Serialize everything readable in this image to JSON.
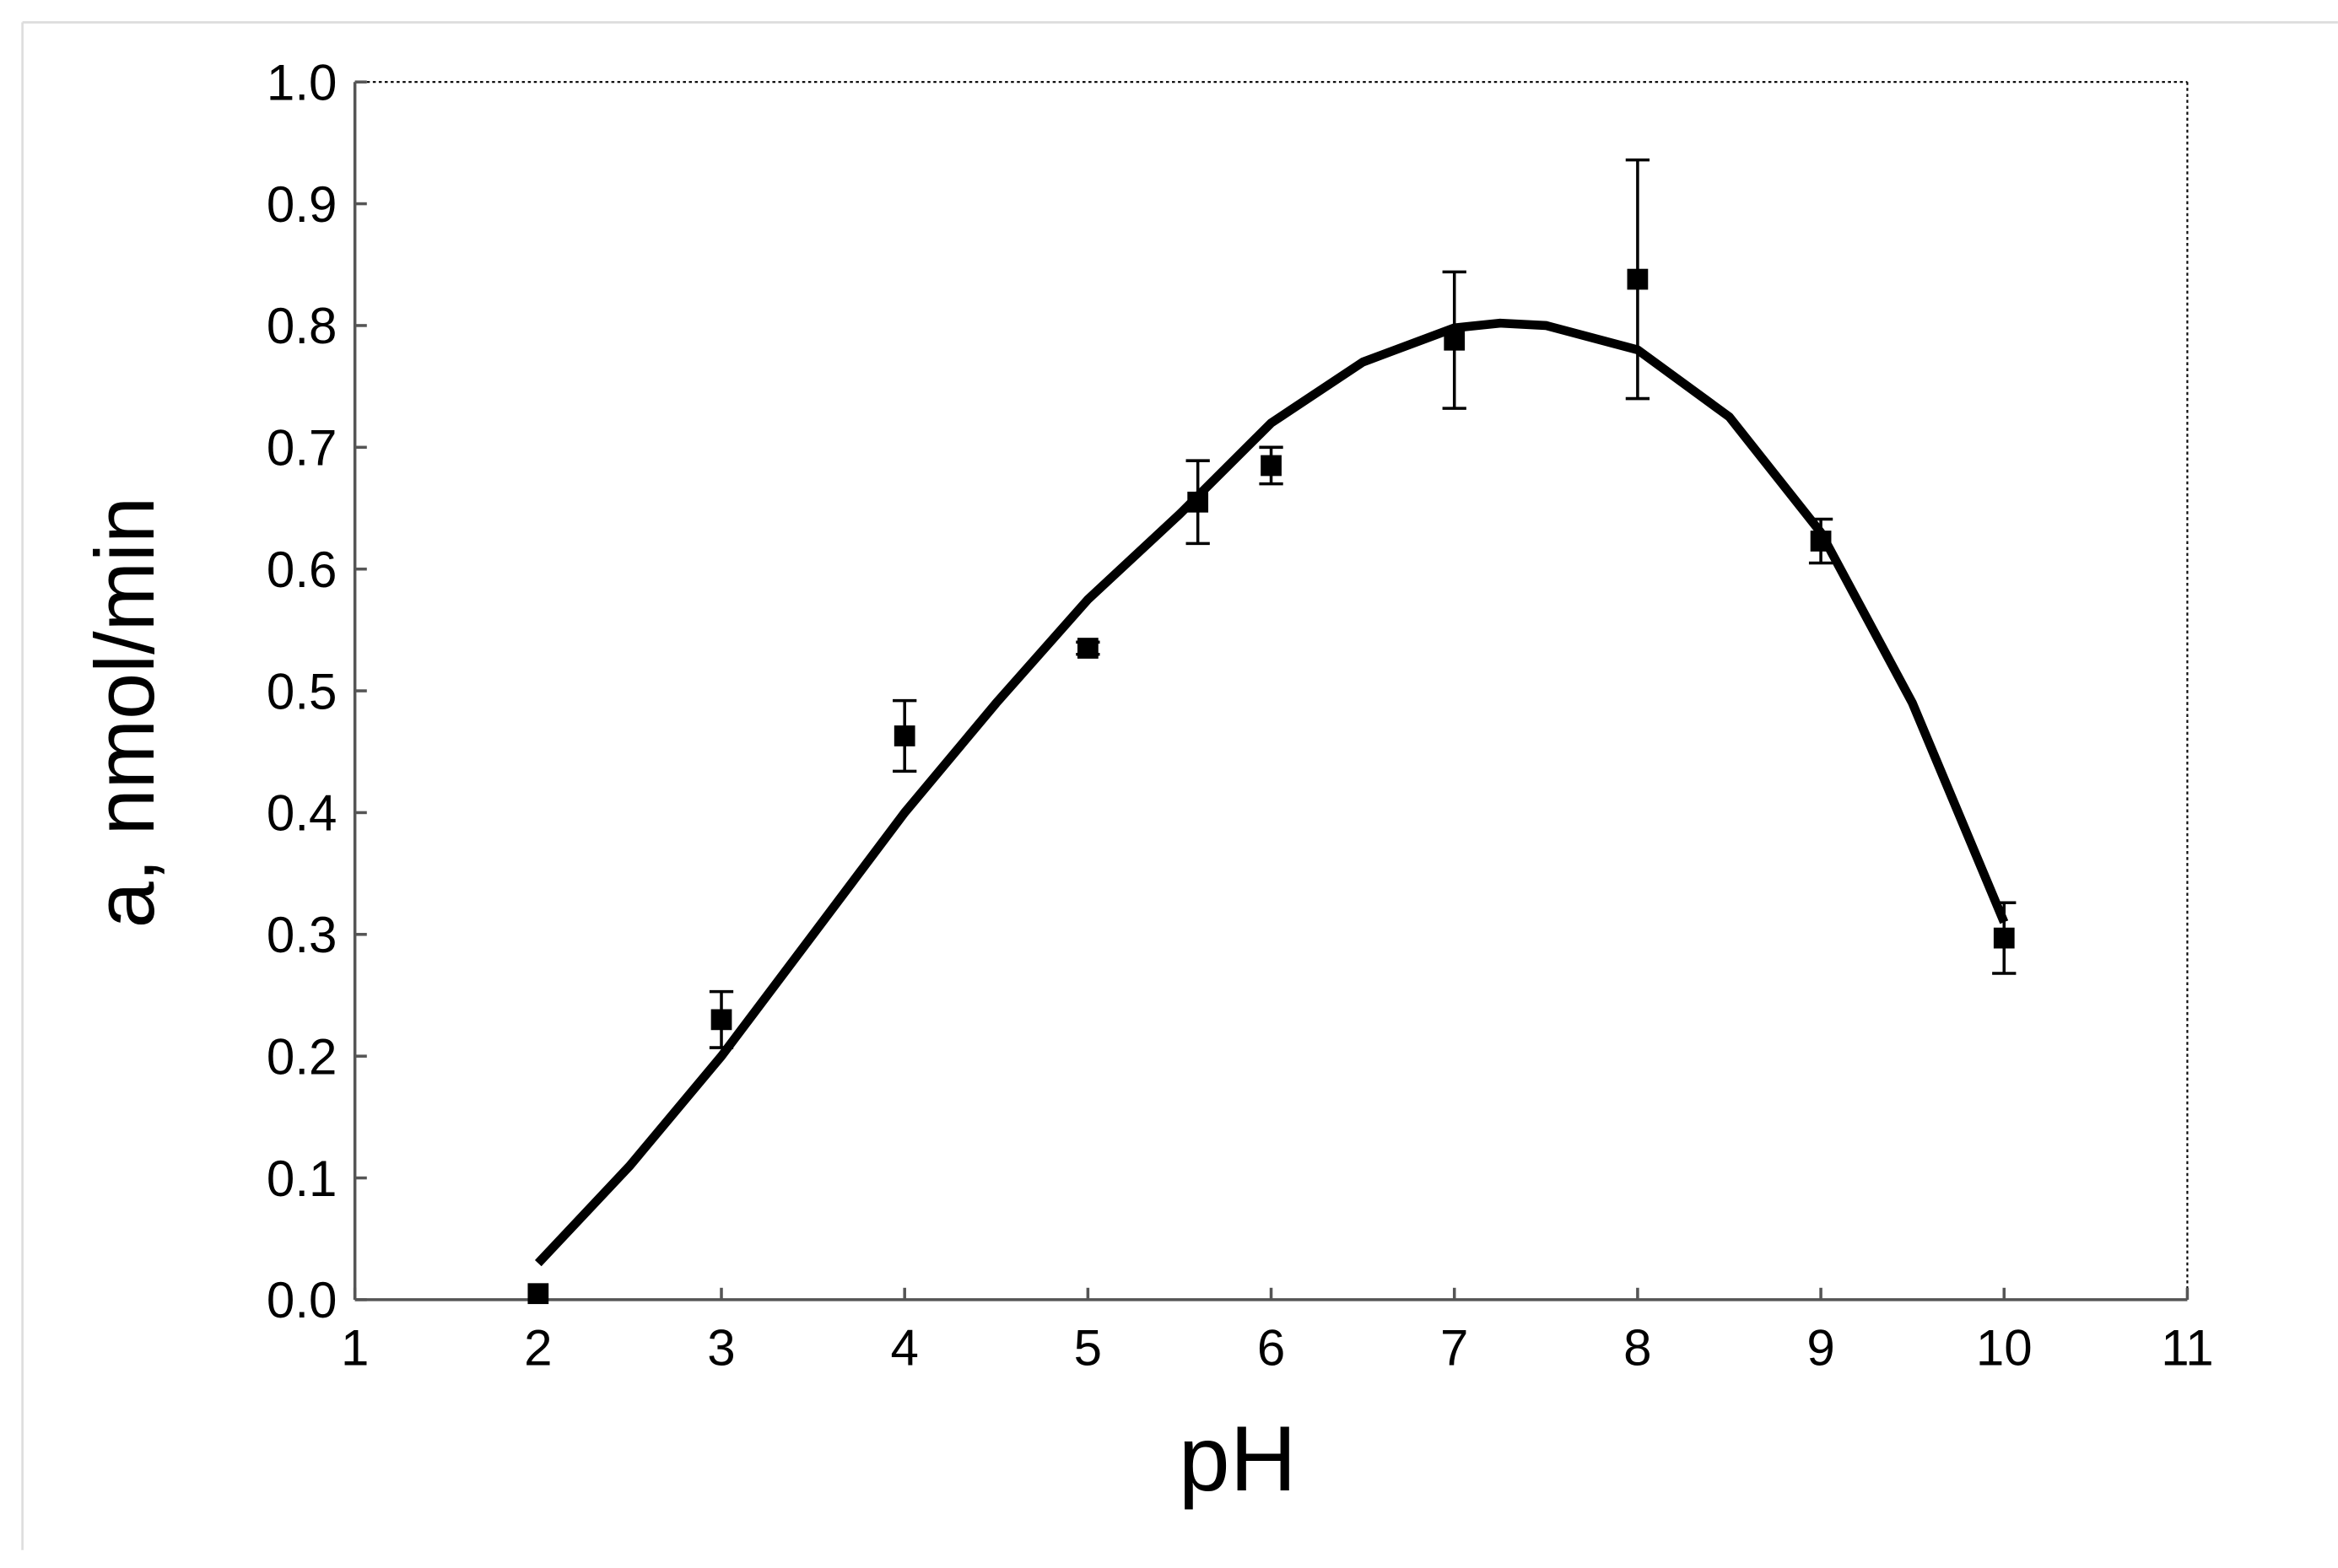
{
  "chart_data": {
    "type": "scatter",
    "x_label": "pH",
    "y_label": "a, nmol/min",
    "xlim": [
      1,
      11
    ],
    "ylim": [
      0,
      1
    ],
    "xticks": [
      1,
      2,
      3,
      4,
      5,
      6,
      7,
      8,
      9,
      10,
      11
    ],
    "yticks": [
      {
        "value": 0,
        "label": "0.0"
      },
      0.1,
      0.2,
      0.3,
      0.4,
      0.5,
      0.6,
      0.7,
      0.8,
      0.9,
      {
        "value": 1,
        "label": "1.0"
      }
    ],
    "series": [
      {
        "type": "scatter",
        "color": "#000000",
        "x": [
          2,
          3,
          4,
          5,
          5.6,
          6,
          7,
          8,
          9,
          10
        ],
        "values": [
          0.005,
          0.23,
          0.463,
          0.535,
          0.655,
          0.685,
          0.788,
          0.838,
          0.623,
          0.297
        ],
        "errors": [
          0,
          0.023,
          0.029,
          0.005,
          0.034,
          0.015,
          0.056,
          0.098,
          0.018,
          0.029
        ]
      },
      {
        "type": "line",
        "color": "#000000",
        "x": [
          2,
          2.5,
          3,
          3.5,
          4,
          4.5,
          5,
          5.5,
          6,
          6.5,
          7,
          7.25,
          7.5,
          8,
          8.5,
          9,
          9.5,
          10
        ],
        "values": [
          0.03,
          0.11,
          0.2,
          0.3,
          0.4,
          0.49,
          0.575,
          0.645,
          0.72,
          0.77,
          0.798,
          0.802,
          0.8,
          0.78,
          0.725,
          0.63,
          0.49,
          0.31
        ]
      }
    ]
  }
}
